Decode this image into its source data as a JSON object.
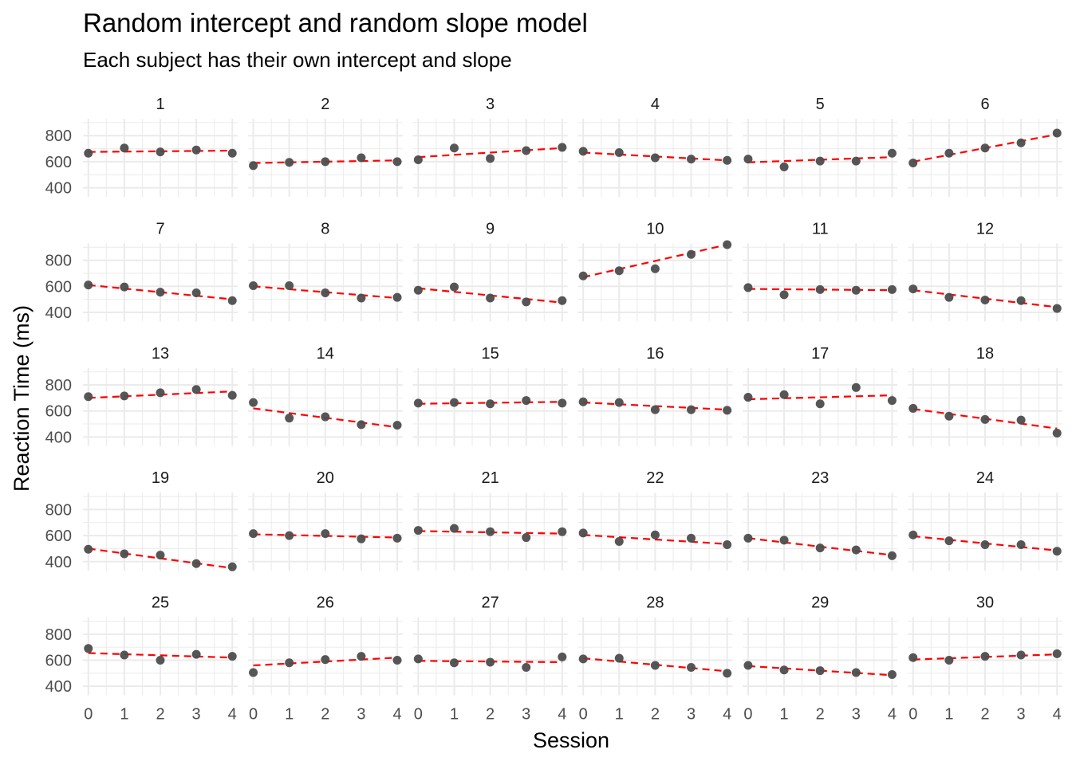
{
  "chart_data": {
    "type": "scatter",
    "title": "Random intercept and random slope model",
    "subtitle": "Each subject has their own intercept and slope",
    "xlabel": "Session",
    "ylabel": "Reaction Time (ms)",
    "x_ticks": [
      0,
      1,
      2,
      3,
      4
    ],
    "y_ticks": [
      400,
      600,
      800
    ],
    "xlim": [
      -0.15,
      4.15
    ],
    "ylim": [
      330,
      930
    ],
    "grid": true,
    "layout": "facet grid, 6 columns x 5 rows",
    "colors": {
      "points": "#4d4d4d",
      "fit_line": "#ff0000",
      "grid": "#ebebeb"
    },
    "panels": [
      {
        "label": "1",
        "values": [
          665,
          705,
          675,
          690,
          665
        ],
        "fit": [
          675,
          685
        ]
      },
      {
        "label": "2",
        "values": [
          570,
          595,
          600,
          630,
          600
        ],
        "fit": [
          590,
          610
        ]
      },
      {
        "label": "3",
        "values": [
          615,
          705,
          625,
          685,
          710
        ],
        "fit": [
          635,
          705
        ]
      },
      {
        "label": "4",
        "values": [
          680,
          670,
          630,
          620,
          610
        ],
        "fit": [
          670,
          610
        ]
      },
      {
        "label": "5",
        "values": [
          620,
          560,
          605,
          605,
          665
        ],
        "fit": [
          595,
          635
        ]
      },
      {
        "label": "6",
        "values": [
          590,
          665,
          705,
          745,
          820
        ],
        "fit": [
          600,
          810
        ]
      },
      {
        "label": "7",
        "values": [
          610,
          595,
          555,
          550,
          490
        ],
        "fit": [
          610,
          500
        ]
      },
      {
        "label": "8",
        "values": [
          605,
          605,
          550,
          510,
          515
        ],
        "fit": [
          600,
          510
        ]
      },
      {
        "label": "9",
        "values": [
          570,
          595,
          510,
          480,
          490
        ],
        "fit": [
          585,
          475
        ]
      },
      {
        "label": "10",
        "values": [
          680,
          720,
          735,
          845,
          920
        ],
        "fit": [
          670,
          920
        ]
      },
      {
        "label": "11",
        "values": [
          590,
          535,
          575,
          570,
          575
        ],
        "fit": [
          580,
          570
        ]
      },
      {
        "label": "12",
        "values": [
          580,
          515,
          495,
          490,
          430
        ],
        "fit": [
          570,
          440
        ]
      },
      {
        "label": "13",
        "values": [
          710,
          715,
          740,
          765,
          720
        ],
        "fit": [
          700,
          750
        ]
      },
      {
        "label": "14",
        "values": [
          665,
          545,
          555,
          495,
          490
        ],
        "fit": [
          620,
          475
        ]
      },
      {
        "label": "15",
        "values": [
          660,
          665,
          655,
          680,
          660
        ],
        "fit": [
          655,
          670
        ]
      },
      {
        "label": "16",
        "values": [
          670,
          665,
          610,
          610,
          605
        ],
        "fit": [
          665,
          610
        ]
      },
      {
        "label": "17",
        "values": [
          705,
          725,
          655,
          780,
          680
        ],
        "fit": [
          690,
          720
        ]
      },
      {
        "label": "18",
        "values": [
          620,
          560,
          535,
          530,
          430
        ],
        "fit": [
          615,
          465
        ]
      },
      {
        "label": "19",
        "values": [
          495,
          460,
          450,
          385,
          360
        ],
        "fit": [
          500,
          350
        ]
      },
      {
        "label": "20",
        "values": [
          615,
          600,
          615,
          575,
          580
        ],
        "fit": [
          610,
          585
        ]
      },
      {
        "label": "21",
        "values": [
          640,
          655,
          630,
          585,
          630
        ],
        "fit": [
          635,
          615
        ]
      },
      {
        "label": "22",
        "values": [
          620,
          555,
          605,
          580,
          530
        ],
        "fit": [
          605,
          535
        ]
      },
      {
        "label": "23",
        "values": [
          580,
          565,
          505,
          490,
          445
        ],
        "fit": [
          580,
          450
        ]
      },
      {
        "label": "24",
        "values": [
          605,
          560,
          530,
          530,
          480
        ],
        "fit": [
          595,
          485
        ]
      },
      {
        "label": "25",
        "values": [
          690,
          640,
          600,
          645,
          630
        ],
        "fit": [
          655,
          620
        ]
      },
      {
        "label": "26",
        "values": [
          505,
          580,
          605,
          630,
          600
        ],
        "fit": [
          560,
          620
        ]
      },
      {
        "label": "27",
        "values": [
          610,
          580,
          585,
          545,
          625
        ],
        "fit": [
          595,
          585
        ]
      },
      {
        "label": "28",
        "values": [
          610,
          615,
          560,
          545,
          500
        ],
        "fit": [
          615,
          515
        ]
      },
      {
        "label": "29",
        "values": [
          560,
          525,
          520,
          505,
          490
        ],
        "fit": [
          555,
          485
        ]
      },
      {
        "label": "30",
        "values": [
          620,
          600,
          630,
          640,
          650
        ],
        "fit": [
          605,
          645
        ]
      }
    ]
  }
}
